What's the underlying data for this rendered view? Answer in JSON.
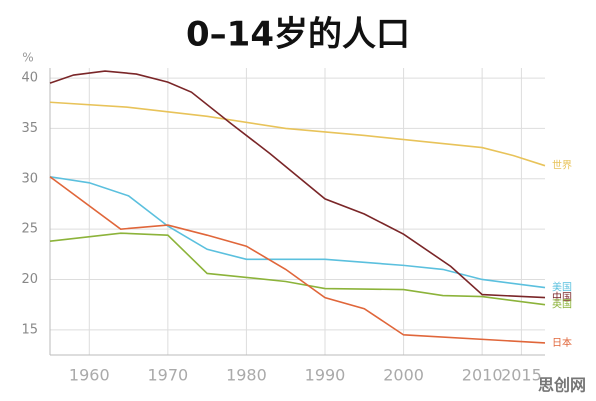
{
  "chart_data": {
    "type": "line",
    "title": "0–14岁的人口",
    "y_label": "%",
    "xlim": [
      1955,
      2018
    ],
    "xticks": [
      1960,
      1970,
      1980,
      1990,
      2000,
      2010,
      2015
    ],
    "ylim": [
      12.5,
      41
    ],
    "yticks": [
      15,
      20,
      25,
      30,
      35,
      40
    ],
    "grid": true,
    "series": [
      {
        "name": "世界",
        "color": "#e8c35a",
        "x": [
          1955,
          1965,
          1975,
          1985,
          1995,
          2005,
          2010,
          2014,
          2018
        ],
        "values": [
          37.6,
          37.1,
          36.2,
          35.0,
          34.3,
          33.5,
          33.1,
          32.3,
          31.3
        ]
      },
      {
        "name": "美国",
        "color": "#5bc0de",
        "x": [
          1955,
          1960,
          1965,
          1970,
          1975,
          1980,
          1990,
          2000,
          2005,
          2010,
          2018
        ],
        "values": [
          30.2,
          29.6,
          28.3,
          25.3,
          23.0,
          22.0,
          22.0,
          21.4,
          21.0,
          20.0,
          19.2
        ]
      },
      {
        "name": "中国",
        "color": "#7a2628",
        "x": [
          1955,
          1958,
          1962,
          1966,
          1970,
          1973,
          1978,
          1983,
          1990,
          1995,
          2000,
          2006,
          2010,
          2018
        ],
        "values": [
          39.5,
          40.3,
          40.7,
          40.4,
          39.6,
          38.6,
          35.5,
          32.5,
          28.0,
          26.5,
          24.5,
          21.3,
          18.5,
          18.2
        ]
      },
      {
        "name": "英国",
        "color": "#8cb33a",
        "x": [
          1955,
          1964,
          1970,
          1975,
          1985,
          1990,
          2000,
          2005,
          2010,
          2018
        ],
        "values": [
          23.8,
          24.6,
          24.4,
          20.6,
          19.8,
          19.1,
          19.0,
          18.4,
          18.3,
          17.5
        ]
      },
      {
        "name": "日本",
        "color": "#e0663a",
        "x": [
          1955,
          1964,
          1970,
          1975,
          1980,
          1985,
          1990,
          1995,
          2000,
          2018
        ],
        "values": [
          30.2,
          25.0,
          25.4,
          24.4,
          23.3,
          21.0,
          18.2,
          17.1,
          14.5,
          13.7
        ]
      }
    ],
    "watermark": "思创网"
  }
}
